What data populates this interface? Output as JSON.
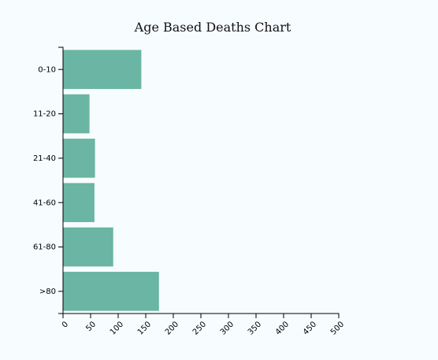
{
  "chart_data": {
    "type": "bar",
    "orientation": "horizontal",
    "title": "Age Based Deaths Chart",
    "categories": [
      "0-10",
      "11-20",
      "21-40",
      "41-60",
      "61-80",
      ">80"
    ],
    "values": [
      142,
      48,
      58,
      57,
      91,
      174
    ],
    "xlim": [
      0,
      500
    ],
    "xticks": [
      0,
      50,
      100,
      150,
      200,
      250,
      300,
      350,
      400,
      450,
      500
    ],
    "xticks_labels": [
      "0",
      "50",
      "100",
      "150",
      "200",
      "250",
      "300",
      "350",
      "400",
      "450",
      "500"
    ],
    "xlabel": "",
    "ylabel": "",
    "grid": false,
    "bar_color": "#6ab5a3"
  }
}
